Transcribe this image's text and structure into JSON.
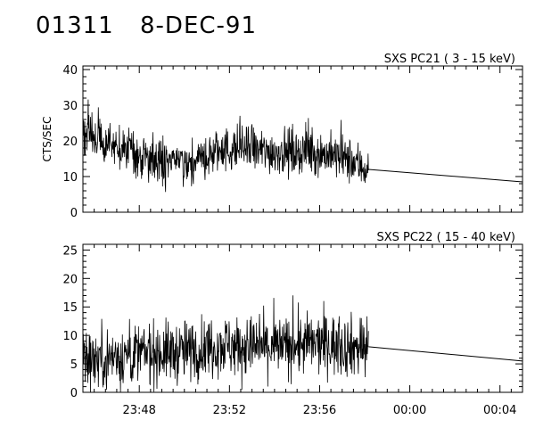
{
  "header": {
    "id": "01311",
    "date": "8-DEC-91"
  },
  "chart_data": [
    {
      "type": "line",
      "title": "SXS PC21  (  3 - 15 keV)",
      "ylabel": "CTS/SEC",
      "xlabel": "",
      "ylim": [
        0,
        41
      ],
      "yticks": [
        0,
        10,
        20,
        30,
        40
      ],
      "xlim": [
        "23:45:30",
        "00:05:00"
      ],
      "xtick_labels": [
        "23:48",
        "23:52",
        "23:56",
        "00:00",
        "00:04"
      ],
      "series": [
        {
          "points": [
            {
              "x": "23:45:30",
              "y": 23
            },
            {
              "x": "23:46:30",
              "y": 20
            },
            {
              "x": "23:47:30",
              "y": 17
            },
            {
              "x": "23:48:30",
              "y": 15
            },
            {
              "x": "23:49:30",
              "y": 14
            },
            {
              "x": "23:50:30",
              "y": 14
            },
            {
              "x": "23:51:30",
              "y": 17
            },
            {
              "x": "23:52:30",
              "y": 18
            },
            {
              "x": "23:53:30",
              "y": 17
            },
            {
              "x": "23:54:30",
              "y": 17
            },
            {
              "x": "23:55:30",
              "y": 17
            },
            {
              "x": "23:56:30",
              "y": 16
            },
            {
              "x": "23:57:30",
              "y": 14
            },
            {
              "x": "23:58:10",
              "y": 12
            },
            {
              "x": "00:05:00",
              "y": 8.5
            }
          ]
        }
      ]
    },
    {
      "type": "line",
      "title": "SXS PC22  ( 15 - 40 keV)",
      "ylabel": "",
      "xlabel": "",
      "ylim": [
        0,
        26
      ],
      "yticks": [
        0,
        5,
        10,
        15,
        20,
        25
      ],
      "xlim": [
        "23:45:30",
        "00:05:00"
      ],
      "xtick_labels": [
        "23:48",
        "23:52",
        "23:56",
        "00:00",
        "00:04"
      ],
      "series": [
        {
          "points": [
            {
              "x": "23:45:30",
              "y": 6
            },
            {
              "x": "23:46:30",
              "y": 6
            },
            {
              "x": "23:47:30",
              "y": 6.5
            },
            {
              "x": "23:48:30",
              "y": 7
            },
            {
              "x": "23:49:30",
              "y": 7
            },
            {
              "x": "23:50:30",
              "y": 7.5
            },
            {
              "x": "23:51:30",
              "y": 8.5
            },
            {
              "x": "23:52:30",
              "y": 8
            },
            {
              "x": "23:53:30",
              "y": 8
            },
            {
              "x": "23:54:30",
              "y": 8
            },
            {
              "x": "23:55:30",
              "y": 8.5
            },
            {
              "x": "23:56:30",
              "y": 8.5
            },
            {
              "x": "23:57:30",
              "y": 8
            },
            {
              "x": "23:58:10",
              "y": 8
            },
            {
              "x": "00:05:00",
              "y": 5.5
            }
          ]
        }
      ]
    }
  ]
}
